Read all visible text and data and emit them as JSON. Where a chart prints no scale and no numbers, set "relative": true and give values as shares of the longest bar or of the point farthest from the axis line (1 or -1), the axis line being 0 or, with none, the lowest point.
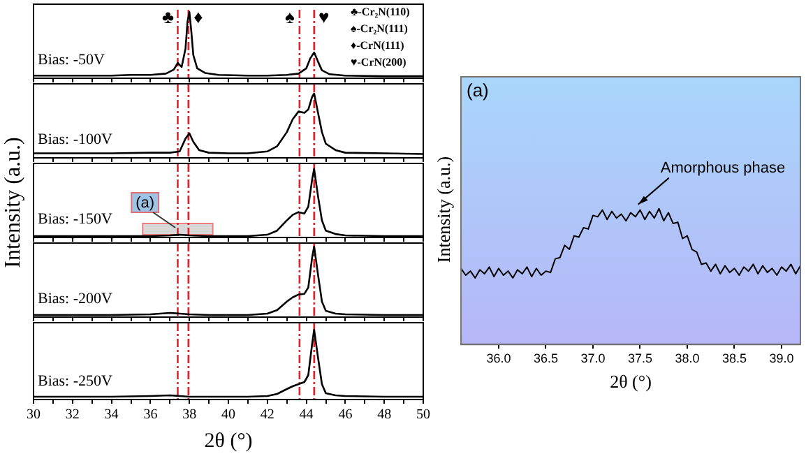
{
  "chart_data": [
    {
      "type": "line",
      "relative": true,
      "tick_labels": false,
      "xlim": [
        30,
        50
      ],
      "xticks": [
        30,
        {
          "value": 31,
          "label": null
        },
        32,
        {
          "value": 33,
          "label": null
        },
        34,
        {
          "value": 35,
          "label": null
        },
        36,
        {
          "value": 37,
          "label": null
        },
        38,
        {
          "value": 39,
          "label": null
        },
        40,
        {
          "value": 41,
          "label": null
        },
        42,
        {
          "value": 43,
          "label": null
        },
        44,
        {
          "value": 45,
          "label": null
        },
        46,
        {
          "value": 47,
          "label": null
        },
        48,
        {
          "value": 49,
          "label": null
        },
        50
      ],
      "x": [
        30,
        32,
        34,
        35,
        36,
        36.8,
        37.2,
        37.4,
        37.6,
        37.8,
        37.9,
        38.0,
        38.1,
        38.2,
        38.4,
        38.8,
        39.5,
        41,
        42,
        43,
        43.6,
        44.0,
        44.2,
        44.4,
        44.6,
        44.8,
        45.2,
        46,
        48,
        50
      ],
      "values": [
        0.04,
        0.04,
        0.04,
        0.05,
        0.05,
        0.07,
        0.13,
        0.23,
        0.17,
        0.45,
        0.85,
        1,
        0.7,
        0.35,
        0.15,
        0.08,
        0.05,
        0.04,
        0.04,
        0.05,
        0.07,
        0.15,
        0.3,
        0.39,
        0.25,
        0.12,
        0.06,
        0.04,
        0.03,
        0.03
      ],
      "color": "#000000",
      "ref_lines": [
        {
          "axis": "x",
          "value": 37.4,
          "label": "♣",
          "color": "#e8202a",
          "line_style": "dashed"
        },
        {
          "axis": "x",
          "value": 37.95,
          "label": "♦",
          "color": "#e8202a",
          "line_style": "dashed"
        },
        {
          "axis": "x",
          "value": 43.65,
          "label": "♠",
          "color": "#e8202a",
          "line_style": "dashed"
        },
        {
          "axis": "x",
          "value": 44.4,
          "label": "♥",
          "color": "#e8202a",
          "line_style": "dashed"
        }
      ],
      "annotations": [
        "Bias: -50V",
        "♣-Cr₂N(110)",
        "♠-Cr₂N(111)",
        "♦-CrN(111)",
        "♥-CrN(200)"
      ]
    },
    {
      "type": "line",
      "relative": true,
      "tick_labels": false,
      "xlim": [
        30,
        50
      ],
      "xticks": [
        30,
        {
          "value": 31,
          "label": null
        },
        32,
        {
          "value": 33,
          "label": null
        },
        34,
        {
          "value": 35,
          "label": null
        },
        36,
        {
          "value": 37,
          "label": null
        },
        38,
        {
          "value": 39,
          "label": null
        },
        40,
        {
          "value": 41,
          "label": null
        },
        42,
        {
          "value": 43,
          "label": null
        },
        44,
        {
          "value": 45,
          "label": null
        },
        46,
        {
          "value": 47,
          "label": null
        },
        48,
        {
          "value": 49,
          "label": null
        },
        50
      ],
      "x": [
        30,
        32,
        34,
        36,
        37,
        37.5,
        37.8,
        38.0,
        38.2,
        38.5,
        39,
        40,
        41,
        42,
        42.5,
        43,
        43.3,
        43.6,
        43.9,
        44.1,
        44.3,
        44.4,
        44.6,
        44.8,
        45,
        45.5,
        46,
        48,
        50
      ],
      "values": [
        0.07,
        0.07,
        0.07,
        0.08,
        0.08,
        0.1,
        0.3,
        0.38,
        0.25,
        0.12,
        0.08,
        0.07,
        0.07,
        0.1,
        0.18,
        0.4,
        0.6,
        0.72,
        0.7,
        0.75,
        0.95,
        1,
        0.7,
        0.4,
        0.22,
        0.12,
        0.08,
        0.07,
        0.06
      ],
      "color": "#000000",
      "ref_lines": [
        {
          "axis": "x",
          "value": 37.4,
          "color": "#e8202a",
          "line_style": "dashed"
        },
        {
          "axis": "x",
          "value": 37.95,
          "color": "#e8202a",
          "line_style": "dashed"
        },
        {
          "axis": "x",
          "value": 43.65,
          "color": "#e8202a",
          "line_style": "dashed"
        },
        {
          "axis": "x",
          "value": 44.4,
          "color": "#e8202a",
          "line_style": "dashed"
        }
      ],
      "annotations": [
        "Bias: -100V"
      ]
    },
    {
      "type": "line",
      "relative": true,
      "tick_labels": false,
      "xlim": [
        30,
        50
      ],
      "ylabel": "Intensity (a.u.)",
      "xticks": [
        30,
        {
          "value": 31,
          "label": null
        },
        32,
        {
          "value": 33,
          "label": null
        },
        34,
        {
          "value": 35,
          "label": null
        },
        36,
        {
          "value": 37,
          "label": null
        },
        38,
        {
          "value": 39,
          "label": null
        },
        40,
        {
          "value": 41,
          "label": null
        },
        42,
        {
          "value": 43,
          "label": null
        },
        44,
        {
          "value": 45,
          "label": null
        },
        46,
        {
          "value": 47,
          "label": null
        },
        48,
        {
          "value": 49,
          "label": null
        },
        50
      ],
      "x": [
        30,
        32,
        34,
        36,
        37,
        37.5,
        38,
        39,
        40,
        41,
        42,
        42.5,
        43,
        43.3,
        43.6,
        43.9,
        44.1,
        44.3,
        44.4,
        44.6,
        44.8,
        45,
        45.5,
        46,
        48,
        50
      ],
      "values": [
        0.02,
        0.02,
        0.02,
        0.02,
        0.03,
        0.04,
        0.03,
        0.02,
        0.02,
        0.02,
        0.04,
        0.1,
        0.25,
        0.33,
        0.37,
        0.35,
        0.45,
        0.85,
        1,
        0.6,
        0.25,
        0.1,
        0.05,
        0.03,
        0.02,
        0.02
      ],
      "color": "#000000",
      "ref_lines": [
        {
          "axis": "x",
          "value": 37.4,
          "color": "#e8202a",
          "line_style": "dashed"
        },
        {
          "axis": "x",
          "value": 37.95,
          "color": "#e8202a",
          "line_style": "dashed"
        },
        {
          "axis": "x",
          "value": 43.65,
          "color": "#e8202a",
          "line_style": "dashed"
        },
        {
          "axis": "x",
          "value": 44.4,
          "color": "#e8202a",
          "line_style": "dashed"
        }
      ],
      "bands": [
        {
          "axis": "x",
          "from": 35.6,
          "to": 39.2,
          "label": "(a)",
          "color": "#d9d9d9"
        }
      ],
      "annotations": [
        "Bias: -150V"
      ]
    },
    {
      "type": "line",
      "relative": true,
      "tick_labels": false,
      "xlim": [
        30,
        50
      ],
      "xticks": [
        30,
        {
          "value": 31,
          "label": null
        },
        32,
        {
          "value": 33,
          "label": null
        },
        34,
        {
          "value": 35,
          "label": null
        },
        36,
        {
          "value": 37,
          "label": null
        },
        38,
        {
          "value": 39,
          "label": null
        },
        40,
        {
          "value": 41,
          "label": null
        },
        42,
        {
          "value": 43,
          "label": null
        },
        44,
        {
          "value": 45,
          "label": null
        },
        46,
        {
          "value": 47,
          "label": null
        },
        48,
        {
          "value": 49,
          "label": null
        },
        50
      ],
      "x": [
        30,
        32,
        34,
        36,
        37,
        37.5,
        38,
        39,
        40,
        41,
        42,
        42.5,
        43,
        43.3,
        43.6,
        43.9,
        44.1,
        44.3,
        44.4,
        44.6,
        44.8,
        45,
        45.5,
        46,
        48,
        50
      ],
      "values": [
        0.03,
        0.03,
        0.03,
        0.04,
        0.06,
        0.05,
        0.04,
        0.03,
        0.03,
        0.03,
        0.05,
        0.1,
        0.22,
        0.28,
        0.32,
        0.33,
        0.42,
        0.85,
        1,
        0.6,
        0.22,
        0.09,
        0.05,
        0.04,
        0.03,
        0.03
      ],
      "color": "#000000",
      "ref_lines": [
        {
          "axis": "x",
          "value": 37.4,
          "color": "#e8202a",
          "line_style": "dashed"
        },
        {
          "axis": "x",
          "value": 37.95,
          "color": "#e8202a",
          "line_style": "dashed"
        },
        {
          "axis": "x",
          "value": 43.65,
          "color": "#e8202a",
          "line_style": "dashed"
        },
        {
          "axis": "x",
          "value": 44.4,
          "color": "#e8202a",
          "line_style": "dashed"
        }
      ],
      "annotations": [
        "Bias: -200V"
      ]
    },
    {
      "type": "line",
      "relative": true,
      "tick_labels": "x",
      "xlim": [
        30,
        50
      ],
      "xlabel": "2θ (°)",
      "xticks": [
        30,
        {
          "value": 31,
          "label": null
        },
        32,
        {
          "value": 33,
          "label": null
        },
        34,
        {
          "value": 35,
          "label": null
        },
        36,
        {
          "value": 37,
          "label": null
        },
        38,
        {
          "value": 39,
          "label": null
        },
        40,
        {
          "value": 41,
          "label": null
        },
        42,
        {
          "value": 43,
          "label": null
        },
        44,
        {
          "value": 45,
          "label": null
        },
        46,
        {
          "value": 47,
          "label": null
        },
        48,
        {
          "value": 49,
          "label": null
        },
        50
      ],
      "x": [
        30,
        32,
        34,
        36,
        37,
        37.5,
        38,
        39,
        40,
        41,
        42,
        42.5,
        43,
        43.3,
        43.6,
        43.9,
        44.1,
        44.3,
        44.4,
        44.6,
        44.8,
        45,
        45.5,
        46,
        48,
        50
      ],
      "values": [
        0.04,
        0.04,
        0.04,
        0.05,
        0.06,
        0.05,
        0.04,
        0.04,
        0.04,
        0.04,
        0.05,
        0.08,
        0.15,
        0.19,
        0.22,
        0.25,
        0.35,
        0.8,
        1,
        0.6,
        0.22,
        0.09,
        0.06,
        0.05,
        0.04,
        0.04
      ],
      "color": "#000000",
      "ref_lines": [
        {
          "axis": "x",
          "value": 37.4,
          "color": "#e8202a",
          "line_style": "dashed"
        },
        {
          "axis": "x",
          "value": 37.95,
          "color": "#e8202a",
          "line_style": "dashed"
        },
        {
          "axis": "x",
          "value": 43.65,
          "color": "#e8202a",
          "line_style": "dashed"
        },
        {
          "axis": "x",
          "value": 44.4,
          "color": "#e8202a",
          "line_style": "dashed"
        }
      ],
      "annotations": [
        "Bias: -250V"
      ]
    },
    {
      "type": "line",
      "relative": true,
      "tick_labels": "x",
      "title": "(a)",
      "xlabel": "2θ (°)",
      "ylabel": "Intensity (a.u.)",
      "xlim": [
        35.6,
        39.2
      ],
      "xticks": [
        {
          "value": 36,
          "label": "36.0"
        },
        36.5,
        {
          "value": 37,
          "label": "37.0"
        },
        37.5,
        {
          "value": 38,
          "label": "38.0"
        },
        38.5,
        {
          "value": 39,
          "label": "39.0"
        }
      ],
      "x": [
        35.6,
        35.65,
        35.7,
        35.75,
        35.8,
        35.85,
        35.9,
        35.95,
        36.0,
        36.05,
        36.1,
        36.15,
        36.2,
        36.25,
        36.3,
        36.35,
        36.4,
        36.45,
        36.5,
        36.55,
        36.6,
        36.65,
        36.7,
        36.75,
        36.8,
        36.85,
        36.9,
        36.95,
        37.0,
        37.05,
        37.1,
        37.15,
        37.2,
        37.25,
        37.3,
        37.35,
        37.4,
        37.45,
        37.5,
        37.55,
        37.6,
        37.65,
        37.7,
        37.75,
        37.8,
        37.85,
        37.9,
        37.95,
        38.0,
        38.05,
        38.1,
        38.15,
        38.2,
        38.25,
        38.3,
        38.35,
        38.4,
        38.45,
        38.5,
        38.55,
        38.6,
        38.65,
        38.7,
        38.75,
        38.8,
        38.85,
        38.9,
        38.95,
        39.0,
        39.05,
        39.1,
        39.15,
        39.2
      ],
      "values": [
        0.56,
        0.51,
        0.54,
        0.49,
        0.55,
        0.52,
        0.57,
        0.5,
        0.56,
        0.51,
        0.54,
        0.49,
        0.55,
        0.52,
        0.57,
        0.5,
        0.56,
        0.51,
        0.54,
        0.53,
        0.63,
        0.64,
        0.73,
        0.7,
        0.8,
        0.79,
        0.86,
        0.85,
        0.95,
        0.94,
        0.99,
        0.92,
        0.98,
        0.93,
        0.96,
        0.91,
        0.97,
        0.94,
        0.99,
        0.92,
        0.98,
        0.93,
        1,
        0.91,
        0.97,
        0.89,
        0.9,
        0.78,
        0.8,
        0.7,
        0.68,
        0.59,
        0.6,
        0.54,
        0.59,
        0.52,
        0.58,
        0.53,
        0.56,
        0.51,
        0.57,
        0.54,
        0.59,
        0.52,
        0.58,
        0.53,
        0.56,
        0.51,
        0.57,
        0.54,
        0.59,
        0.52,
        0.58
      ],
      "color": "#000000",
      "annotations": [
        {
          "text": "Amorphous phase",
          "x": 37.45,
          "y": 0.99
        }
      ]
    }
  ]
}
